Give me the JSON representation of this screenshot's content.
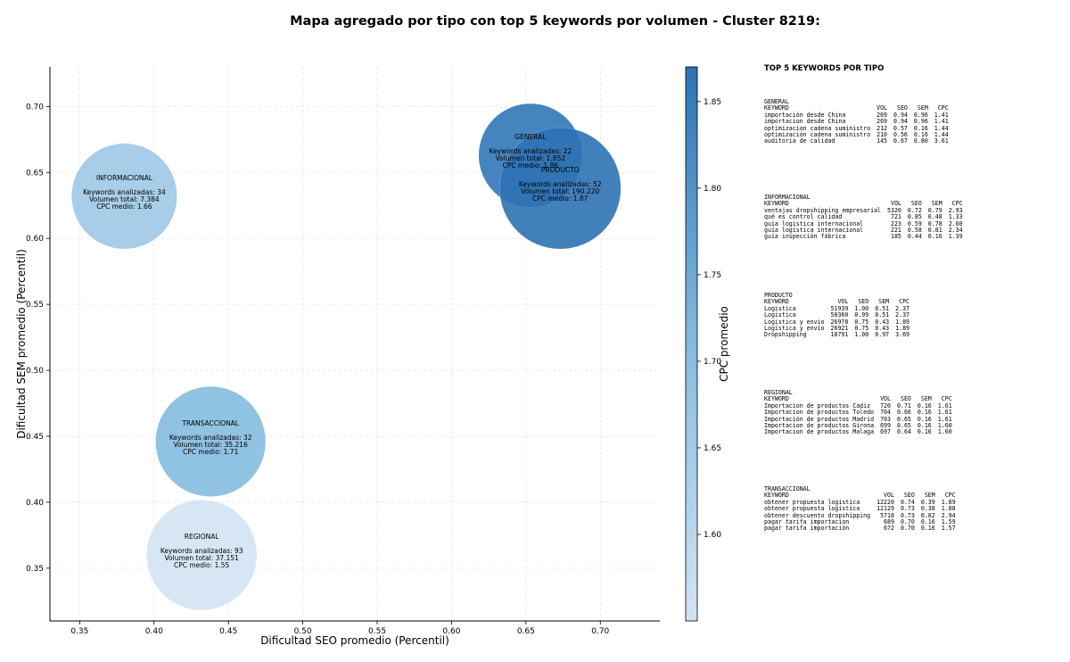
{
  "chart_data": {
    "type": "scatter",
    "title": "Mapa agregado por tipo con top 5 keywords por volumen - Cluster 8219:",
    "xlabel": "Dificultad SEO promedio (Percentil)",
    "ylabel": "Dificultad SEM promedio (Percentil)",
    "xlim": [
      0.33,
      0.74
    ],
    "ylim": [
      0.31,
      0.73
    ],
    "xticks": [
      "0.35",
      "0.40",
      "0.45",
      "0.50",
      "0.55",
      "0.60",
      "0.65",
      "0.70"
    ],
    "yticks": [
      "0.35",
      "0.40",
      "0.45",
      "0.50",
      "0.55",
      "0.60",
      "0.65",
      "0.70"
    ],
    "grid": true,
    "colorbar": {
      "label": "CPC promedio",
      "range": [
        1.55,
        1.87
      ],
      "ticks": [
        "1.60",
        "1.65",
        "1.70",
        "1.75",
        "1.80",
        "1.85"
      ],
      "color_low": "#d3e3f3",
      "color_high": "#2d72b4"
    },
    "bubble_size_by": "volume",
    "points": [
      {
        "name": "GENERAL",
        "x": 0.653,
        "y": 0.663,
        "keywords_line": "Keywords analizadas: 22",
        "volume_line": "Volumen total: 1.852",
        "cpc_line": "CPC medio: 1.86",
        "keywords": 22,
        "volume": 1852,
        "cpc": 1.86
      },
      {
        "name": "PRODUCTO",
        "x": 0.673,
        "y": 0.638,
        "keywords_line": "Keywords analizadas: 52",
        "volume_line": "Volumen total: 190.220",
        "cpc_line": "CPC medio: 1.87",
        "keywords": 52,
        "volume": 190220,
        "cpc": 1.87
      },
      {
        "name": "INFORMACIONAL",
        "x": 0.38,
        "y": 0.632,
        "keywords_line": "Keywords analizadas: 34",
        "volume_line": "Volumen total: 7.384",
        "cpc_line": "CPC medio: 1.66",
        "keywords": 34,
        "volume": 7384,
        "cpc": 1.66
      },
      {
        "name": "TRANSACCIONAL",
        "x": 0.438,
        "y": 0.446,
        "keywords_line": "Keywords analizadas: 32",
        "volume_line": "Volumen total: 35.216",
        "cpc_line": "CPC medio: 1.71",
        "keywords": 32,
        "volume": 35216,
        "cpc": 1.71
      },
      {
        "name": "REGIONAL",
        "x": 0.432,
        "y": 0.36,
        "keywords_line": "Keywords analizadas: 93",
        "volume_line": "Volumen total: 37.151",
        "cpc_line": "CPC medio: 1.55",
        "keywords": 93,
        "volume": 37151,
        "cpc": 1.55
      }
    ]
  },
  "panel": {
    "title": "TOP 5 KEYWORDS POR TIPO",
    "groups": [
      {
        "name": "GENERAL",
        "headers": [
          "KEYWORD",
          "VOL",
          "SEO",
          "SEM",
          "CPC"
        ],
        "rows": [
          [
            "importación desde China",
            "269",
            "0.94",
            "0.96",
            "1.41"
          ],
          [
            "importacion desde China",
            "269",
            "0.94",
            "0.96",
            "1.41"
          ],
          [
            "optimizacion cadena suministro",
            "212",
            "0.57",
            "0.16",
            "1.44"
          ],
          [
            "optimización cadena suministro",
            "210",
            "0.56",
            "0.16",
            "1.44"
          ],
          [
            "auditoría de calidad",
            "145",
            "0.67",
            "0.80",
            "3.61"
          ]
        ]
      },
      {
        "name": "INFORMACIONAL",
        "headers": [
          "KEYWORD",
          "VOL",
          "SEO",
          "SEM",
          "CPC"
        ],
        "rows": [
          [
            "ventajas dropshipping empresarial",
            "5320",
            "0.72",
            "0.79",
            "2.93"
          ],
          [
            "qué es control calidad",
            "721",
            "0.85",
            "0.48",
            "1.33"
          ],
          [
            "guia logistica internacional",
            "223",
            "0.59",
            "0.78",
            "2.60"
          ],
          [
            "guía logística internacional",
            "221",
            "0.58",
            "0.81",
            "2.34"
          ],
          [
            "guía inspección fábrica",
            "185",
            "0.44",
            "0.16",
            "1.39"
          ]
        ]
      },
      {
        "name": "PRODUCTO",
        "headers": [
          "KEYWORD",
          "VOL",
          "SEO",
          "SEM",
          "CPC"
        ],
        "rows": [
          [
            "Logistica",
            "51939",
            "1.00",
            "0.51",
            "2.37"
          ],
          [
            "Logística",
            "50360",
            "0.99",
            "0.51",
            "2.37"
          ],
          [
            "Logistica y envio",
            "26978",
            "0.75",
            "0.43",
            "1.89"
          ],
          [
            "Logística y envío",
            "26921",
            "0.75",
            "0.43",
            "1.89"
          ],
          [
            "Dropshipping",
            "18791",
            "1.00",
            "0.97",
            "3.69"
          ]
        ]
      },
      {
        "name": "REGIONAL",
        "headers": [
          "KEYWORD",
          "VOL",
          "SEO",
          "SEM",
          "CPC"
        ],
        "rows": [
          [
            "Importacion de productos Cadiz",
            "720",
            "0.71",
            "0.16",
            "1.61"
          ],
          [
            "Importacion de productos Toledo",
            "704",
            "0.66",
            "0.16",
            "1.61"
          ],
          [
            "Importación de productos Madrid",
            "703",
            "0.65",
            "0.16",
            "1.61"
          ],
          [
            "Importacion de productos Girona",
            "699",
            "0.65",
            "0.16",
            "1.60"
          ],
          [
            "Importacion de productos Malaga",
            "697",
            "0.64",
            "0.16",
            "1.60"
          ]
        ]
      },
      {
        "name": "TRANSACCIONAL",
        "headers": [
          "KEYWORD",
          "VOL",
          "SEO",
          "SEM",
          "CPC"
        ],
        "rows": [
          [
            "obtener propuesta logistica",
            "12220",
            "0.74",
            "0.39",
            "1.89"
          ],
          [
            "obtener propuesta logística",
            "12129",
            "0.73",
            "0.38",
            "1.88"
          ],
          [
            "obtener descuento dropshipping",
            "5718",
            "0.73",
            "0.82",
            "2.94"
          ],
          [
            "pagar tarifa importacion",
            "689",
            "0.70",
            "0.16",
            "1.59"
          ],
          [
            "pagar tarifa importación",
            "672",
            "0.70",
            "0.16",
            "1.57"
          ]
        ]
      }
    ]
  }
}
